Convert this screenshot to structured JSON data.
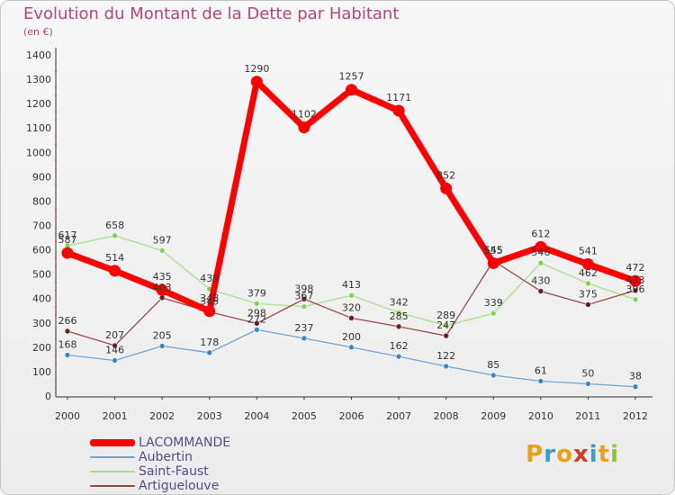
{
  "header": {
    "title": "Evolution du Montant de la Dette par Habitant",
    "subtitle": "(en €)"
  },
  "logo": {
    "text": "Proxiti",
    "colors": [
      "#e8a21a",
      "#3a9bd6",
      "#e8a21a",
      "#d83a2a",
      "#3a9bd6",
      "#e8a21a",
      "#8cc63f"
    ]
  },
  "chart_data": {
    "type": "line",
    "title": "Evolution du Montant de la Dette par Habitant",
    "subtitle": "(en €)",
    "xlabel": "",
    "ylabel": "",
    "ylim": [
      0,
      1400
    ],
    "yticks": [
      0,
      100,
      200,
      300,
      400,
      500,
      600,
      700,
      800,
      900,
      1000,
      1100,
      1200,
      1300,
      1400
    ],
    "grid": false,
    "legend_position": "bottom-left",
    "categories": [
      "2000",
      "2001",
      "2002",
      "2003",
      "2004",
      "2005",
      "2006",
      "2007",
      "2008",
      "2009",
      "2010",
      "2011",
      "2012"
    ],
    "series": [
      {
        "name": "Aubertin",
        "color": "#6fa5d2",
        "marker": "#3d86c6",
        "width": 1.3,
        "values": [
          168,
          146,
          205,
          178,
          272,
          237,
          200,
          162,
          122,
          85,
          61,
          50,
          38
        ],
        "labels": [
          "168",
          "146",
          "205",
          "178",
          "272",
          "237",
          "200",
          "162",
          "122",
          "85",
          "61",
          "50",
          "38"
        ]
      },
      {
        "name": "Saint-Faust",
        "color": "#a8df8c",
        "marker": "#7cd54a",
        "width": 1.3,
        "values": [
          617,
          658,
          597,
          439,
          379,
          367,
          413,
          342,
          289,
          339,
          546,
          462,
          396
        ],
        "labels": [
          "617",
          "658",
          "597",
          "439",
          "379",
          "367",
          "413",
          "342",
          "289",
          "339",
          "546",
          "462",
          "396"
        ]
      },
      {
        "name": "Artiguelouve",
        "color": "#9b4a4a",
        "marker": "#6b1c1c",
        "width": 1.3,
        "values": [
          266,
          207,
          403,
          345,
          298,
          398,
          320,
          285,
          247,
          555,
          430,
          375,
          433
        ],
        "labels": [
          "266",
          "207",
          "403",
          "345",
          "298",
          "398",
          "320",
          "285",
          "247",
          "555",
          "430",
          "375",
          "433"
        ]
      },
      {
        "name": "LACOMMANDE",
        "color": "#ff0000",
        "marker": "#ff0000",
        "width": 7,
        "radius": 6.5,
        "values": [
          587,
          514,
          435,
          348,
          1290,
          1102,
          1257,
          1171,
          852,
          545,
          612,
          541,
          472
        ],
        "labels": [
          "587",
          "514",
          "435",
          "348",
          "1290",
          "1102",
          "1257",
          "1171",
          "852",
          "545",
          "612",
          "541",
          "472"
        ]
      }
    ],
    "legend": [
      {
        "name": "LACOMMANDE",
        "color": "#ff0000"
      },
      {
        "name": "Aubertin",
        "color": "#6fa5d2"
      },
      {
        "name": "Saint-Faust",
        "color": "#a8df8c"
      },
      {
        "name": "Artiguelouve",
        "color": "#9b4a4a"
      }
    ]
  }
}
